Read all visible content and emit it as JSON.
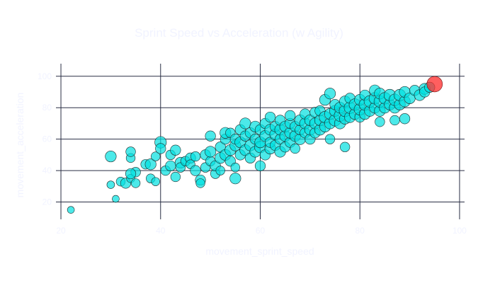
{
  "chart_data": {
    "type": "scatter",
    "title": "Sprint Speed vs Acceleration (w Agility)",
    "xlabel": "movement_sprint_speed",
    "ylabel": "movement_acceleration",
    "xlim": [
      19,
      101
    ],
    "ylim": [
      9,
      108
    ],
    "xticks": [
      20,
      40,
      60,
      80,
      100
    ],
    "yticks": [
      20,
      40,
      60,
      80,
      100
    ],
    "grid": true,
    "colors": {
      "points": "#00e0e0",
      "highlight": "#ff2a2a",
      "grid": "#2a2f45",
      "text": "#f1f3ff"
    },
    "highlight": {
      "x": 95,
      "y": 95,
      "size": 95
    },
    "points": [
      {
        "x": 22,
        "y": 15,
        "size": 30
      },
      {
        "x": 31,
        "y": 22,
        "size": 30
      },
      {
        "x": 30,
        "y": 31,
        "size": 35
      },
      {
        "x": 32,
        "y": 33,
        "size": 45
      },
      {
        "x": 33,
        "y": 32,
        "size": 55
      },
      {
        "x": 34,
        "y": 35,
        "size": 40
      },
      {
        "x": 35,
        "y": 39,
        "size": 50
      },
      {
        "x": 34,
        "y": 38,
        "size": 55
      },
      {
        "x": 35,
        "y": 32,
        "size": 45
      },
      {
        "x": 30,
        "y": 49,
        "size": 60
      },
      {
        "x": 34,
        "y": 48,
        "size": 45
      },
      {
        "x": 34,
        "y": 52,
        "size": 50
      },
      {
        "x": 37,
        "y": 44,
        "size": 50
      },
      {
        "x": 38,
        "y": 44,
        "size": 60
      },
      {
        "x": 38,
        "y": 35,
        "size": 45
      },
      {
        "x": 39,
        "y": 33,
        "size": 40
      },
      {
        "x": 39,
        "y": 49,
        "size": 45
      },
      {
        "x": 40,
        "y": 58,
        "size": 65
      },
      {
        "x": 40,
        "y": 54,
        "size": 55
      },
      {
        "x": 41,
        "y": 40,
        "size": 50
      },
      {
        "x": 42,
        "y": 43,
        "size": 55
      },
      {
        "x": 42,
        "y": 50,
        "size": 50
      },
      {
        "x": 43,
        "y": 53,
        "size": 55
      },
      {
        "x": 43,
        "y": 36,
        "size": 50
      },
      {
        "x": 44,
        "y": 45,
        "size": 60
      },
      {
        "x": 44,
        "y": 42,
        "size": 50
      },
      {
        "x": 45,
        "y": 46,
        "size": 50
      },
      {
        "x": 46,
        "y": 48,
        "size": 55
      },
      {
        "x": 46,
        "y": 44,
        "size": 45
      },
      {
        "x": 47,
        "y": 40,
        "size": 55
      },
      {
        "x": 47,
        "y": 49,
        "size": 50
      },
      {
        "x": 48,
        "y": 34,
        "size": 55
      },
      {
        "x": 48,
        "y": 32,
        "size": 45
      },
      {
        "x": 49,
        "y": 42,
        "size": 50
      },
      {
        "x": 49,
        "y": 50,
        "size": 55
      },
      {
        "x": 50,
        "y": 46,
        "size": 50
      },
      {
        "x": 50,
        "y": 52,
        "size": 60
      },
      {
        "x": 50,
        "y": 62,
        "size": 55
      },
      {
        "x": 51,
        "y": 38,
        "size": 50
      },
      {
        "x": 51,
        "y": 43,
        "size": 55
      },
      {
        "x": 52,
        "y": 48,
        "size": 60
      },
      {
        "x": 52,
        "y": 55,
        "size": 55
      },
      {
        "x": 52,
        "y": 40,
        "size": 45
      },
      {
        "x": 53,
        "y": 50,
        "size": 60
      },
      {
        "x": 53,
        "y": 60,
        "size": 55
      },
      {
        "x": 53,
        "y": 64,
        "size": 60
      },
      {
        "x": 54,
        "y": 46,
        "size": 55
      },
      {
        "x": 54,
        "y": 53,
        "size": 60
      },
      {
        "x": 54,
        "y": 64,
        "size": 50
      },
      {
        "x": 55,
        "y": 35,
        "size": 60
      },
      {
        "x": 55,
        "y": 42,
        "size": 45
      },
      {
        "x": 55,
        "y": 56,
        "size": 60
      },
      {
        "x": 55,
        "y": 60,
        "size": 55
      },
      {
        "x": 56,
        "y": 50,
        "size": 55
      },
      {
        "x": 56,
        "y": 58,
        "size": 60
      },
      {
        "x": 56,
        "y": 66,
        "size": 55
      },
      {
        "x": 57,
        "y": 53,
        "size": 60
      },
      {
        "x": 57,
        "y": 62,
        "size": 55
      },
      {
        "x": 57,
        "y": 70,
        "size": 60
      },
      {
        "x": 58,
        "y": 48,
        "size": 55
      },
      {
        "x": 58,
        "y": 56,
        "size": 60
      },
      {
        "x": 58,
        "y": 64,
        "size": 55
      },
      {
        "x": 59,
        "y": 52,
        "size": 60
      },
      {
        "x": 59,
        "y": 60,
        "size": 55
      },
      {
        "x": 59,
        "y": 68,
        "size": 60
      },
      {
        "x": 60,
        "y": 43,
        "size": 55
      },
      {
        "x": 60,
        "y": 55,
        "size": 65
      },
      {
        "x": 60,
        "y": 58,
        "size": 60
      },
      {
        "x": 60,
        "y": 66,
        "size": 55
      },
      {
        "x": 61,
        "y": 50,
        "size": 55
      },
      {
        "x": 61,
        "y": 62,
        "size": 60
      },
      {
        "x": 61,
        "y": 70,
        "size": 55
      },
      {
        "x": 62,
        "y": 54,
        "size": 60
      },
      {
        "x": 62,
        "y": 58,
        "size": 55
      },
      {
        "x": 62,
        "y": 66,
        "size": 60
      },
      {
        "x": 62,
        "y": 74,
        "size": 55
      },
      {
        "x": 63,
        "y": 56,
        "size": 55
      },
      {
        "x": 63,
        "y": 63,
        "size": 60
      },
      {
        "x": 63,
        "y": 68,
        "size": 55
      },
      {
        "x": 64,
        "y": 52,
        "size": 60
      },
      {
        "x": 64,
        "y": 60,
        "size": 55
      },
      {
        "x": 64,
        "y": 66,
        "size": 60
      },
      {
        "x": 64,
        "y": 72,
        "size": 55
      },
      {
        "x": 65,
        "y": 55,
        "size": 55
      },
      {
        "x": 65,
        "y": 62,
        "size": 60
      },
      {
        "x": 65,
        "y": 68,
        "size": 60
      },
      {
        "x": 66,
        "y": 58,
        "size": 55
      },
      {
        "x": 66,
        "y": 64,
        "size": 60
      },
      {
        "x": 66,
        "y": 70,
        "size": 55
      },
      {
        "x": 66,
        "y": 75,
        "size": 55
      },
      {
        "x": 67,
        "y": 54,
        "size": 50
      },
      {
        "x": 67,
        "y": 62,
        "size": 60
      },
      {
        "x": 67,
        "y": 68,
        "size": 55
      },
      {
        "x": 68,
        "y": 60,
        "size": 60
      },
      {
        "x": 68,
        "y": 66,
        "size": 55
      },
      {
        "x": 68,
        "y": 72,
        "size": 60
      },
      {
        "x": 69,
        "y": 64,
        "size": 55
      },
      {
        "x": 69,
        "y": 70,
        "size": 60
      },
      {
        "x": 69,
        "y": 76,
        "size": 55
      },
      {
        "x": 70,
        "y": 60,
        "size": 55
      },
      {
        "x": 70,
        "y": 66,
        "size": 60
      },
      {
        "x": 70,
        "y": 72,
        "size": 60
      },
      {
        "x": 71,
        "y": 64,
        "size": 55
      },
      {
        "x": 71,
        "y": 70,
        "size": 60
      },
      {
        "x": 71,
        "y": 77,
        "size": 55
      },
      {
        "x": 72,
        "y": 66,
        "size": 60
      },
      {
        "x": 72,
        "y": 72,
        "size": 60
      },
      {
        "x": 72,
        "y": 78,
        "size": 55
      },
      {
        "x": 73,
        "y": 68,
        "size": 60
      },
      {
        "x": 73,
        "y": 74,
        "size": 65
      },
      {
        "x": 73,
        "y": 85,
        "size": 60
      },
      {
        "x": 74,
        "y": 60,
        "size": 50
      },
      {
        "x": 74,
        "y": 70,
        "size": 60
      },
      {
        "x": 74,
        "y": 76,
        "size": 60
      },
      {
        "x": 74,
        "y": 89,
        "size": 60
      },
      {
        "x": 75,
        "y": 72,
        "size": 65
      },
      {
        "x": 75,
        "y": 78,
        "size": 60
      },
      {
        "x": 75,
        "y": 82,
        "size": 55
      },
      {
        "x": 76,
        "y": 70,
        "size": 60
      },
      {
        "x": 76,
        "y": 75,
        "size": 65
      },
      {
        "x": 76,
        "y": 80,
        "size": 60
      },
      {
        "x": 77,
        "y": 55,
        "size": 50
      },
      {
        "x": 77,
        "y": 73,
        "size": 60
      },
      {
        "x": 77,
        "y": 78,
        "size": 65
      },
      {
        "x": 77,
        "y": 84,
        "size": 60
      },
      {
        "x": 78,
        "y": 74,
        "size": 60
      },
      {
        "x": 78,
        "y": 80,
        "size": 65
      },
      {
        "x": 78,
        "y": 86,
        "size": 55
      },
      {
        "x": 79,
        "y": 76,
        "size": 60
      },
      {
        "x": 79,
        "y": 82,
        "size": 65
      },
      {
        "x": 80,
        "y": 74,
        "size": 55
      },
      {
        "x": 80,
        "y": 79,
        "size": 65
      },
      {
        "x": 80,
        "y": 85,
        "size": 60
      },
      {
        "x": 81,
        "y": 76,
        "size": 60
      },
      {
        "x": 81,
        "y": 82,
        "size": 65
      },
      {
        "x": 81,
        "y": 88,
        "size": 55
      },
      {
        "x": 82,
        "y": 78,
        "size": 60
      },
      {
        "x": 82,
        "y": 84,
        "size": 65
      },
      {
        "x": 83,
        "y": 80,
        "size": 60
      },
      {
        "x": 83,
        "y": 86,
        "size": 65
      },
      {
        "x": 83,
        "y": 91,
        "size": 60
      },
      {
        "x": 84,
        "y": 71,
        "size": 50
      },
      {
        "x": 84,
        "y": 78,
        "size": 60
      },
      {
        "x": 84,
        "y": 84,
        "size": 65
      },
      {
        "x": 84,
        "y": 89,
        "size": 60
      },
      {
        "x": 85,
        "y": 80,
        "size": 60
      },
      {
        "x": 85,
        "y": 86,
        "size": 65
      },
      {
        "x": 86,
        "y": 82,
        "size": 60
      },
      {
        "x": 86,
        "y": 88,
        "size": 65
      },
      {
        "x": 87,
        "y": 72,
        "size": 50
      },
      {
        "x": 87,
        "y": 80,
        "size": 60
      },
      {
        "x": 87,
        "y": 85,
        "size": 65
      },
      {
        "x": 88,
        "y": 82,
        "size": 60
      },
      {
        "x": 88,
        "y": 88,
        "size": 65
      },
      {
        "x": 89,
        "y": 73,
        "size": 55
      },
      {
        "x": 89,
        "y": 84,
        "size": 60
      },
      {
        "x": 89,
        "y": 90,
        "size": 60
      },
      {
        "x": 90,
        "y": 86,
        "size": 60
      },
      {
        "x": 91,
        "y": 91,
        "size": 55
      },
      {
        "x": 92,
        "y": 88,
        "size": 60
      },
      {
        "x": 93,
        "y": 92,
        "size": 60
      },
      {
        "x": 93,
        "y": 90,
        "size": 55
      },
      {
        "x": 94,
        "y": 93,
        "size": 55
      }
    ]
  }
}
